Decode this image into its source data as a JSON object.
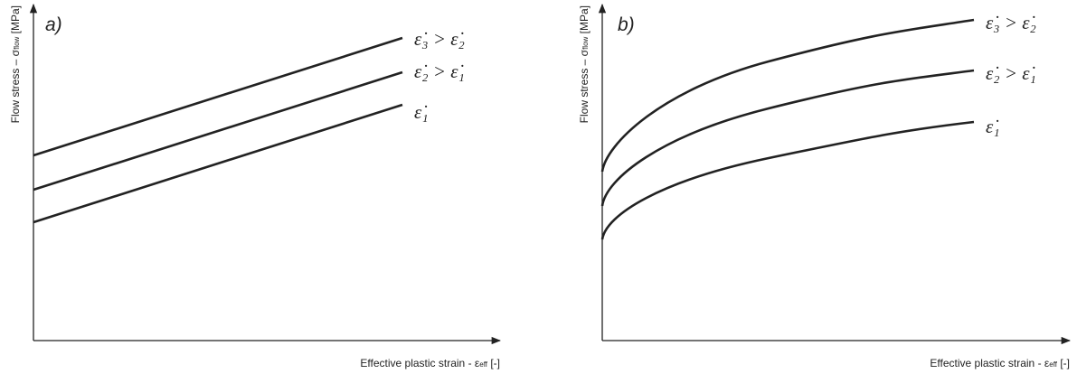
{
  "panels": [
    {
      "label": "a)",
      "y_label": {
        "main": "Flow stress – σ",
        "sub": "flow",
        "unit": " [MPa]"
      },
      "x_label": {
        "main": "Effective plastic strain - ε",
        "sub": "eff",
        "unit": " [-]"
      },
      "curve_labels": [
        "ε̇₃ > ε̇₂",
        "ε̇₂ > ε̇₁",
        "ε̇₁"
      ]
    },
    {
      "label": "b)",
      "y_label": {
        "main": "Flow stress – σ",
        "sub": "flow",
        "unit": " [MPa]"
      },
      "x_label": {
        "main": "Effective plastic strain - ε",
        "sub": "eff",
        "unit": " [-]"
      },
      "curve_labels": [
        "ε̇₃ > ε̇₂",
        "ε̇₂ > ε̇₁",
        "ε̇₁"
      ]
    }
  ]
}
